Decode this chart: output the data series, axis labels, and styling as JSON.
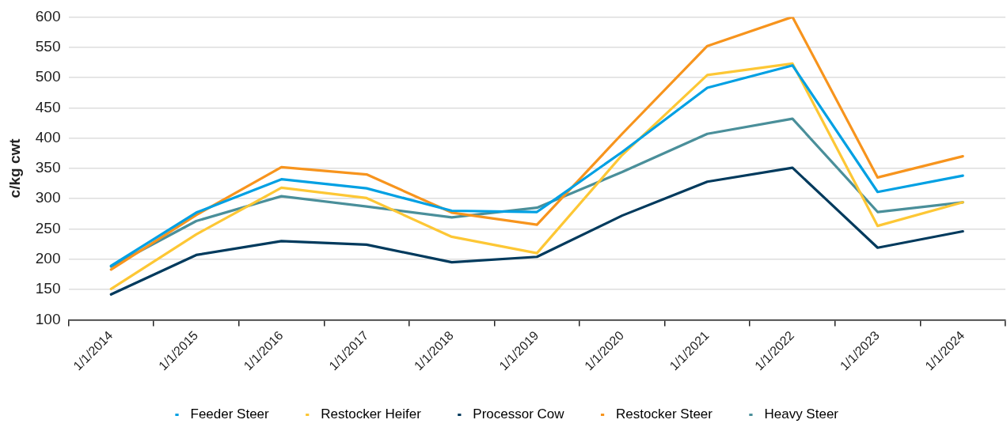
{
  "chart_data": {
    "type": "line",
    "ylabel": "c/kg cwt",
    "categories": [
      "1/1/2014",
      "1/1/2015",
      "1/1/2016",
      "1/1/2017",
      "1/1/2018",
      "1/1/2019",
      "1/1/2020",
      "1/1/2021",
      "1/1/2022",
      "1/1/2023",
      "1/1/2024"
    ],
    "series": [
      {
        "name": "Feeder Steer",
        "color": "#00a0e3",
        "values": [
          189,
          277,
          332,
          317,
          280,
          278,
          377,
          483,
          520,
          311,
          338
        ]
      },
      {
        "name": "Restocker Heifer",
        "color": "#fdc735",
        "values": [
          151,
          241,
          318,
          301,
          237,
          210,
          372,
          504,
          523,
          255,
          294
        ]
      },
      {
        "name": "Processor Cow",
        "color": "#003a5d",
        "values": [
          142,
          207,
          230,
          224,
          195,
          204,
          272,
          328,
          351,
          219,
          246
        ]
      },
      {
        "name": "Restocker Steer",
        "color": "#f7941d",
        "values": [
          183,
          273,
          352,
          340,
          277,
          257,
          407,
          552,
          600,
          335,
          370
        ]
      },
      {
        "name": "Heavy Steer",
        "color": "#4a8f9a",
        "values": [
          188,
          263,
          304,
          287,
          269,
          285,
          344,
          407,
          432,
          278,
          294
        ]
      }
    ],
    "ylim": [
      100,
      600
    ],
    "yticks": [
      100,
      150,
      200,
      250,
      300,
      350,
      400,
      450,
      500,
      550,
      600
    ],
    "grid": "y",
    "legend": "bottom",
    "marker": "none",
    "line_style": "solid"
  }
}
